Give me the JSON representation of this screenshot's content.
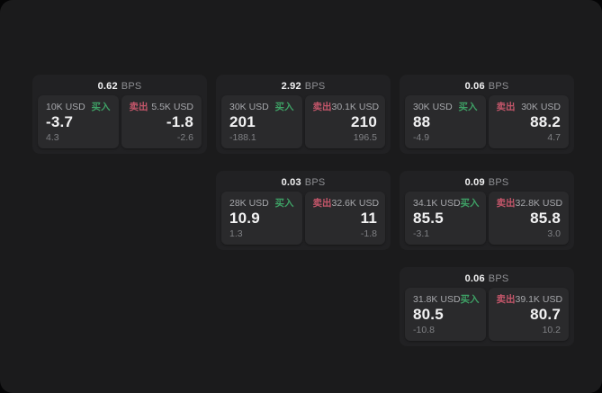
{
  "labels": {
    "buy_label": "买入",
    "sell_label": "卖出",
    "bps_suffix": "BPS"
  },
  "colors": {
    "buy": "#3ea065",
    "sell": "#c4566a",
    "panel_bg": "#1b1b1c",
    "card_bg": "#212123",
    "subcard_bg": "#2a2a2c"
  },
  "cards": [
    {
      "grid": {
        "row": 1,
        "col": 1
      },
      "bps": "0.62",
      "buy": {
        "amount": "10K USD",
        "value": "-3.7",
        "delta": "4.3"
      },
      "sell": {
        "amount": "5.5K USD",
        "value": "-1.8",
        "delta": "-2.6"
      }
    },
    {
      "grid": {
        "row": 1,
        "col": 2
      },
      "bps": "2.92",
      "buy": {
        "amount": "30K USD",
        "value": "201",
        "delta": "-188.1"
      },
      "sell": {
        "amount": "30.1K USD",
        "value": "210",
        "delta": "196.5"
      }
    },
    {
      "grid": {
        "row": 1,
        "col": 3
      },
      "bps": "0.06",
      "buy": {
        "amount": "30K USD",
        "value": "88",
        "delta": "-4.9"
      },
      "sell": {
        "amount": "30K USD",
        "value": "88.2",
        "delta": "4.7"
      }
    },
    {
      "grid": {
        "row": 2,
        "col": 2
      },
      "bps": "0.03",
      "buy": {
        "amount": "28K USD",
        "value": "10.9",
        "delta": "1.3"
      },
      "sell": {
        "amount": "32.6K USD",
        "value": "11",
        "delta": "-1.8"
      }
    },
    {
      "grid": {
        "row": 2,
        "col": 3
      },
      "bps": "0.09",
      "buy": {
        "amount": "34.1K USD",
        "value": "85.5",
        "delta": "-3.1"
      },
      "sell": {
        "amount": "32.8K USD",
        "value": "85.8",
        "delta": "3.0"
      }
    },
    {
      "grid": {
        "row": 3,
        "col": 3
      },
      "bps": "0.06",
      "buy": {
        "amount": "31.8K USD",
        "value": "80.5",
        "delta": "-10.8"
      },
      "sell": {
        "amount": "39.1K USD",
        "value": "80.7",
        "delta": "10.2"
      }
    }
  ]
}
